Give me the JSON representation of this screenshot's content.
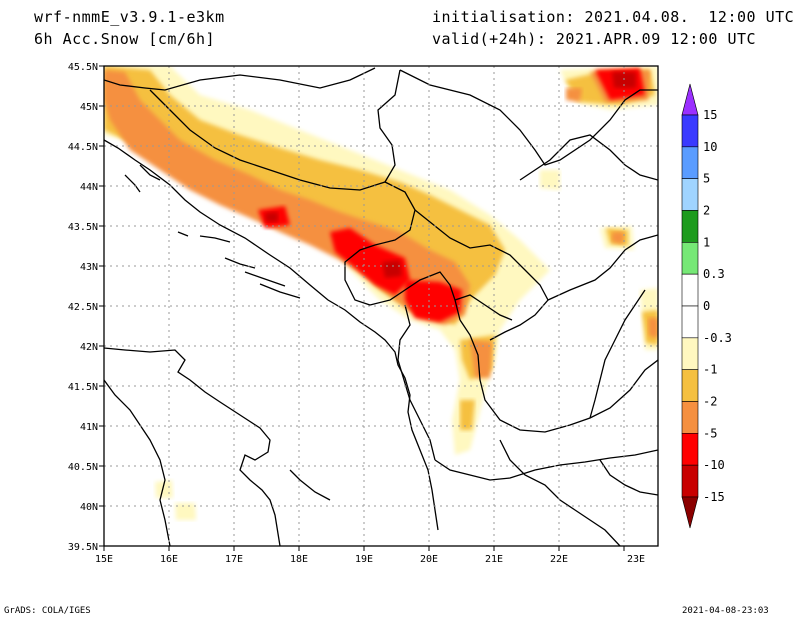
{
  "header": {
    "model": "wrf-nmmE_v3.9.1-e3km",
    "field": "6h Acc.Snow [cm/6h]",
    "init": "initialisation: 2021.04.08.  12:00 UTC",
    "valid": "valid(+24h): 2021.APR.09 12:00 UTC"
  },
  "footer": {
    "credit": "GrADS: COLA/IGES",
    "timestamp": "2021-04-08-23:03"
  },
  "axes": {
    "lon_ticks": [
      "15E",
      "16E",
      "17E",
      "18E",
      "19E",
      "20E",
      "21E",
      "22E",
      "23E"
    ],
    "lat_ticks": [
      "45.5N",
      "45N",
      "44.5N",
      "44N",
      "43.5N",
      "43N",
      "42.5N",
      "42N",
      "41.5N",
      "41N",
      "40.5N",
      "40N",
      "39.5N"
    ]
  },
  "colorbar": {
    "labels": [
      "15",
      "10",
      "5",
      "2",
      "1",
      "0.3",
      "0",
      "-0.3",
      "-1",
      "-2",
      "-5",
      "-10",
      "-15"
    ],
    "colors": [
      "#9b30ff",
      "#3a3aff",
      "#5a9cff",
      "#a0d4ff",
      "#1e9b1e",
      "#76e876",
      "#ffffff",
      "#ffffff",
      "#fff8c0",
      "#f5c040",
      "#f59040",
      "#ff0000",
      "#c80000",
      "#8b0000"
    ]
  },
  "map": {
    "snow_colors": {
      "light": "#fff8c0",
      "yellow": "#f5c040",
      "orange": "#f59040",
      "red": "#ff0000",
      "darkred": "#c80000"
    }
  }
}
